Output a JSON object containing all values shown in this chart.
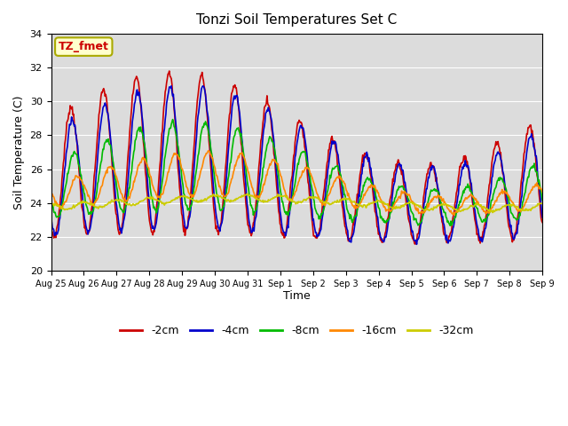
{
  "title": "Tonzi Soil Temperatures Set C",
  "xlabel": "Time",
  "ylabel": "Soil Temperature (C)",
  "ylim": [
    20,
    34
  ],
  "yticks": [
    20,
    22,
    24,
    26,
    28,
    30,
    32,
    34
  ],
  "plot_bg_color": "#dcdcdc",
  "fig_bg_color": "#ffffff",
  "series": {
    "-2cm": {
      "color": "#cc0000",
      "lw": 1.2
    },
    "-4cm": {
      "color": "#0000cc",
      "lw": 1.2
    },
    "-8cm": {
      "color": "#00bb00",
      "lw": 1.2
    },
    "-16cm": {
      "color": "#ff8800",
      "lw": 1.2
    },
    "-32cm": {
      "color": "#cccc00",
      "lw": 1.2
    }
  },
  "annotation": {
    "text": "TZ_fmet",
    "fontsize": 9,
    "color": "#cc0000",
    "bg": "#ffffcc",
    "border": "#aaaa00"
  },
  "xtick_labels": [
    "Aug 25",
    "Aug 26",
    "Aug 27",
    "Aug 28",
    "Aug 29",
    "Aug 30",
    "Aug 31",
    "Sep 1",
    "Sep 2",
    "Sep 3",
    "Sep 4",
    "Sep 5",
    "Sep 6",
    "Sep 7",
    "Sep 8",
    "Sep 9"
  ],
  "num_days": 15,
  "points_per_day": 48
}
